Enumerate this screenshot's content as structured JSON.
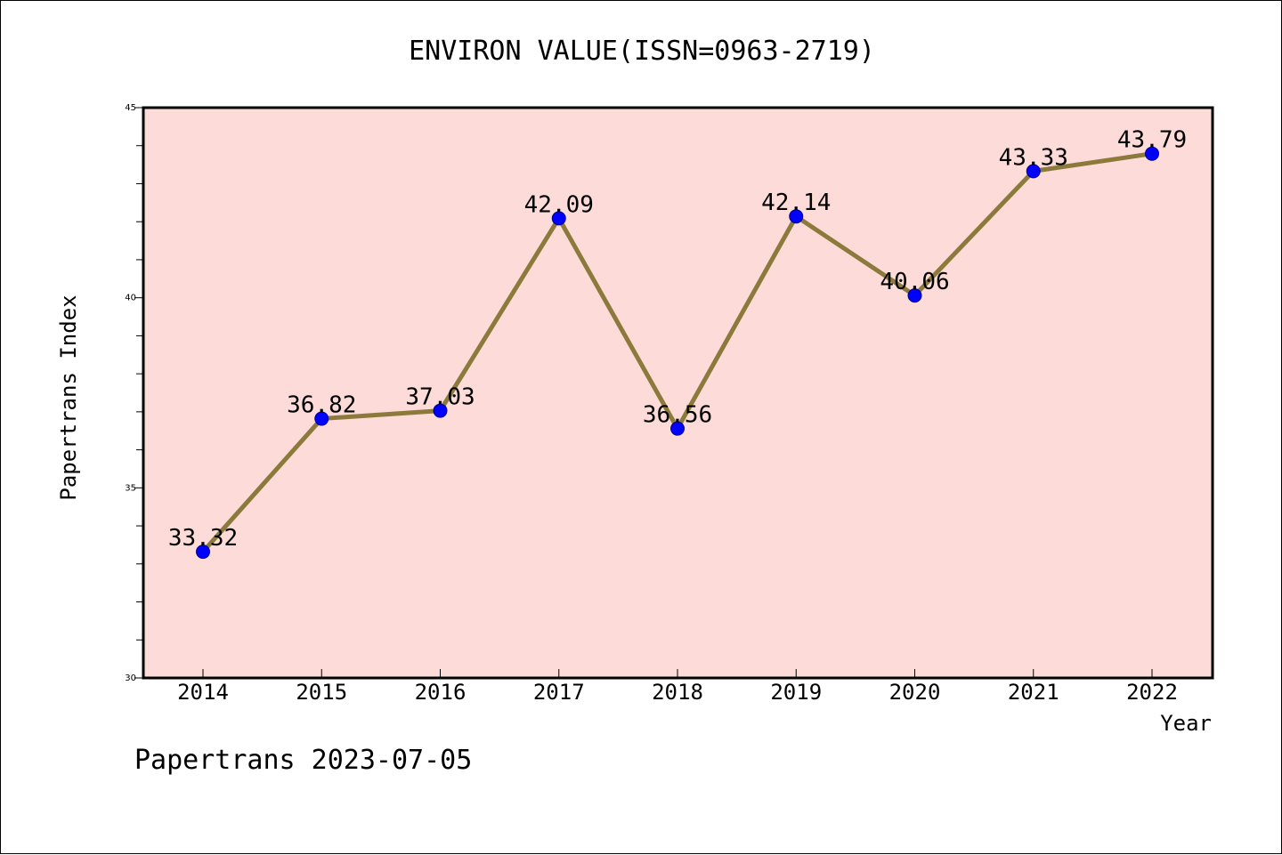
{
  "chart_data": {
    "type": "line",
    "title": "ENVIRON VALUE(ISSN=0963-2719)",
    "xlabel": "Year",
    "ylabel": "Papertrans Index",
    "categories": [
      "2014",
      "2015",
      "2016",
      "2017",
      "2018",
      "2019",
      "2020",
      "2021",
      "2022"
    ],
    "values": [
      33.32,
      36.82,
      37.03,
      42.09,
      36.56,
      42.14,
      40.06,
      43.33,
      43.79
    ],
    "data_labels": [
      "33.32",
      "36.82",
      "37.03",
      "42.09",
      "36.56",
      "42.14",
      "40.06",
      "43.33",
      "43.79"
    ],
    "ylim": [
      30,
      45
    ],
    "yticks": [
      "30",
      "35",
      "40",
      "45"
    ],
    "grid": false,
    "colors": {
      "plot_background": "#fddbd8",
      "line": "#8c7a3c",
      "marker": "#0000ff"
    }
  },
  "footer": "Papertrans 2023-07-05"
}
